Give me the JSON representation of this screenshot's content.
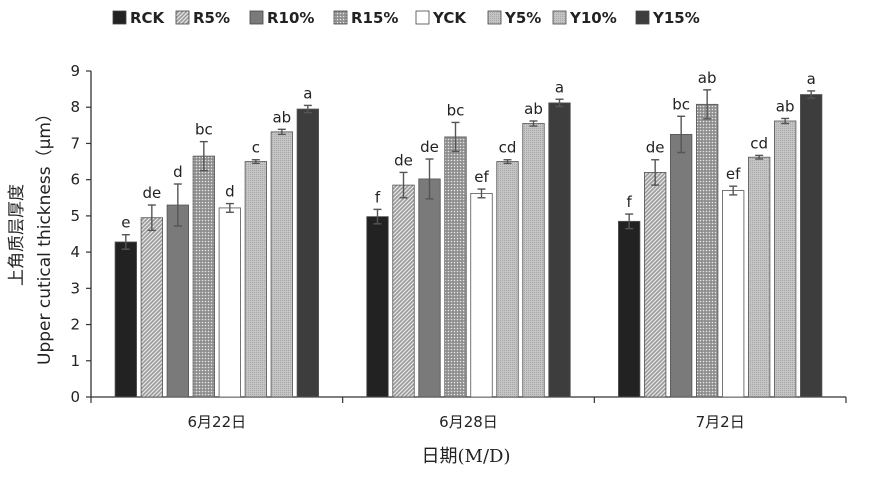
{
  "chart_data": {
    "type": "bar",
    "title": "",
    "ylabel_cn": "上角质层厚度",
    "ylabel": "Upper cutical thickness（μm）",
    "xlabel": "日期(M/D)",
    "ylim": [
      0,
      9
    ],
    "yticks": [
      "0",
      "1",
      "2",
      "3",
      "4",
      "5",
      "6",
      "7",
      "8",
      "9"
    ],
    "grid": false,
    "legend_position": "top",
    "categories": [
      "6月22日",
      "6月28日",
      "7月2日"
    ],
    "series": [
      {
        "name": "RCK",
        "color": "#222222",
        "pattern": "solid",
        "values": [
          4.28,
          4.98,
          4.85
        ],
        "errors": [
          0.2,
          0.2,
          0.2
        ],
        "letters": [
          "e",
          "f",
          "f"
        ]
      },
      {
        "name": "R5%",
        "color": "#9a9a9a",
        "pattern": "hatch",
        "values": [
          4.95,
          5.85,
          6.2
        ],
        "errors": [
          0.35,
          0.35,
          0.35
        ],
        "letters": [
          "de",
          "de",
          "de"
        ]
      },
      {
        "name": "R10%",
        "color": "#7a7a7a",
        "pattern": "solid",
        "values": [
          5.3,
          6.02,
          7.25
        ],
        "errors": [
          0.58,
          0.55,
          0.5
        ],
        "letters": [
          "d",
          "de",
          "bc"
        ]
      },
      {
        "name": "R15%",
        "color": "#b0b0b0",
        "pattern": "dots",
        "values": [
          6.65,
          7.18,
          8.08
        ],
        "errors": [
          0.4,
          0.4,
          0.4
        ],
        "letters": [
          "bc",
          "bc",
          "ab"
        ]
      },
      {
        "name": "YCK",
        "color": "#ffffff",
        "pattern": "solid",
        "values": [
          5.22,
          5.62,
          5.7
        ],
        "errors": [
          0.12,
          0.12,
          0.12
        ],
        "letters": [
          "d",
          "ef",
          "ef"
        ]
      },
      {
        "name": "Y5%",
        "color": "#bdbdbd",
        "pattern": "fine",
        "values": [
          6.5,
          6.5,
          6.62
        ],
        "errors": [
          0.05,
          0.05,
          0.05
        ],
        "letters": [
          "c",
          "cd",
          "cd"
        ]
      },
      {
        "name": "Y10%",
        "color": "#c8c8c8",
        "pattern": "fine",
        "values": [
          7.32,
          7.55,
          7.62
        ],
        "errors": [
          0.07,
          0.07,
          0.07
        ],
        "letters": [
          "ab",
          "ab",
          "ab"
        ]
      },
      {
        "name": "Y15%",
        "color": "#3d3d3d",
        "pattern": "solid",
        "values": [
          7.95,
          8.12,
          8.35
        ],
        "errors": [
          0.1,
          0.1,
          0.1
        ],
        "letters": [
          "a",
          "a",
          "a"
        ]
      }
    ]
  }
}
